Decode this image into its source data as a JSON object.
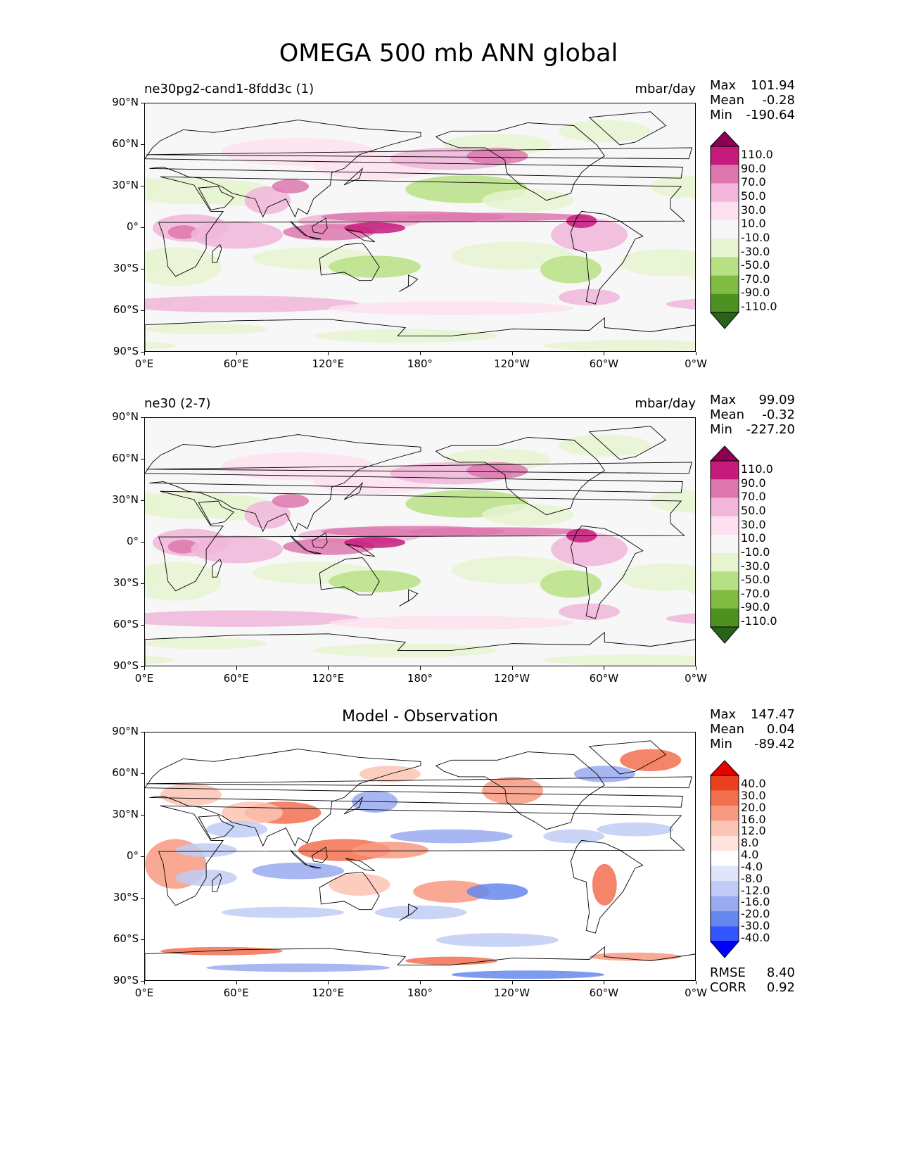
{
  "figure_title": "OMEGA 500 mb ANN global",
  "colors": {
    "prgn": [
      "#276419",
      "#4d9221",
      "#7fbc41",
      "#b8e186",
      "#e6f5d0",
      "#f7f7f7",
      "#fde0ef",
      "#f1b6da",
      "#de77ae",
      "#c51b7d",
      "#8e0152"
    ],
    "bwr": [
      "#0000ff",
      "#3355ff",
      "#6688ee",
      "#99aaf0",
      "#c0ccf5",
      "#e0e6fa",
      "#ffffff",
      "#fde3dc",
      "#fbc4b4",
      "#f89a80",
      "#f27050",
      "#eb4020",
      "#e60000"
    ],
    "land_outline": "#000000"
  },
  "x_ticks": [
    "0°E",
    "60°E",
    "120°E",
    "180°",
    "120°W",
    "60°W",
    "0°W"
  ],
  "y_ticks": [
    "90°N",
    "60°N",
    "30°N",
    "0°",
    "30°S",
    "60°S",
    "90°S"
  ],
  "panels": [
    {
      "id": "test",
      "left_title": "ne30pg2-cand1-8fdd3c (1)",
      "right_title": "mbar/day",
      "center_title": "",
      "stats": {
        "max_label": "Max",
        "max": "101.94",
        "mean_label": "Mean",
        "mean": "-0.28",
        "min_label": "Min",
        "min": "-190.64"
      },
      "colorbar_labels": [
        "110.0",
        "90.0",
        "70.0",
        "50.0",
        "30.0",
        "10.0",
        "-10.0",
        "-30.0",
        "-50.0",
        "-70.0",
        "-90.0",
        "-110.0"
      ]
    },
    {
      "id": "reference",
      "left_title": "ne30 (2-7)",
      "right_title": "mbar/day",
      "center_title": "",
      "stats": {
        "max_label": "Max",
        "max": "99.09",
        "mean_label": "Mean",
        "mean": "-0.32",
        "min_label": "Min",
        "min": "-227.20"
      },
      "colorbar_labels": [
        "110.0",
        "90.0",
        "70.0",
        "50.0",
        "30.0",
        "10.0",
        "-10.0",
        "-30.0",
        "-50.0",
        "-70.0",
        "-90.0",
        "-110.0"
      ]
    },
    {
      "id": "difference",
      "left_title": "",
      "right_title": "",
      "center_title": "Model - Observation",
      "stats": {
        "max_label": "Max",
        "max": "147.47",
        "mean_label": "Mean",
        "mean": "0.04",
        "min_label": "Min",
        "min": "-89.42"
      },
      "colorbar_labels": [
        "40.0",
        "30.0",
        "20.0",
        "16.0",
        "12.0",
        "8.0",
        "4.0",
        "-4.0",
        "-8.0",
        "-12.0",
        "-16.0",
        "-20.0",
        "-30.0",
        "-40.0"
      ],
      "rmse_label": "RMSE",
      "rmse": "8.40",
      "corr_label": "CORR",
      "corr": "0.92"
    }
  ]
}
